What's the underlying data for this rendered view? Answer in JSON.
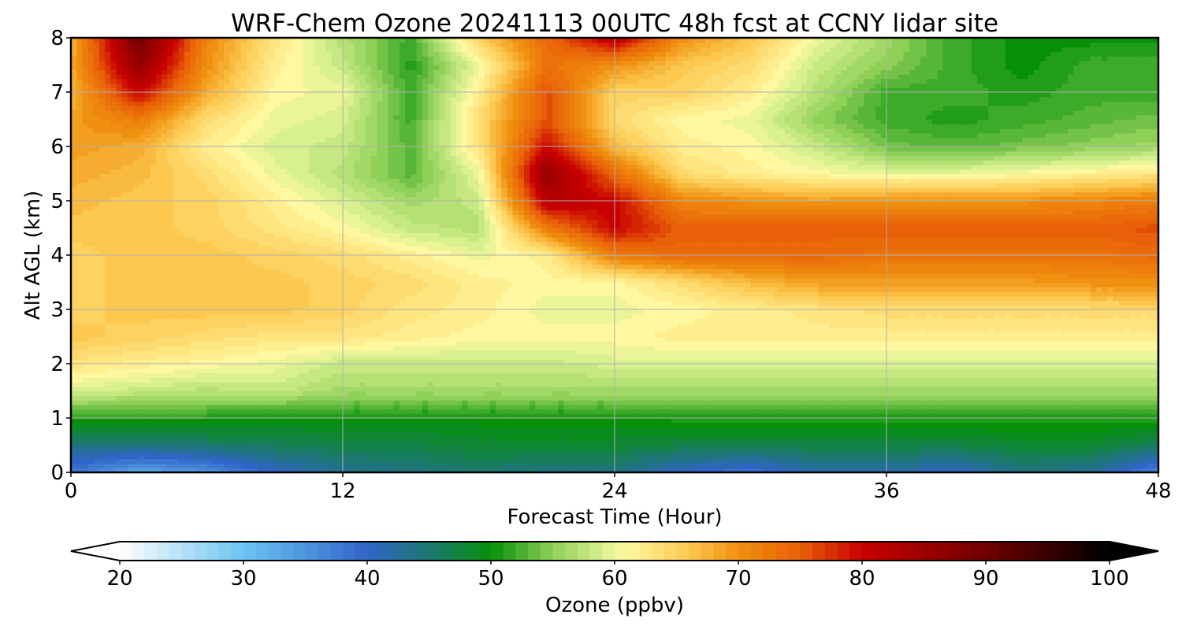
{
  "chart_data": {
    "type": "heatmap",
    "title": "WRF-Chem Ozone  20241113 00UTC 48h fcst at CCNY lidar site",
    "xlabel": "Forecast Time (Hour)",
    "ylabel": "Alt AGL (km)",
    "xlim": [
      0,
      48
    ],
    "ylim": [
      0,
      8
    ],
    "xticks": [
      0,
      12,
      24,
      36,
      48
    ],
    "yticks": [
      0,
      1,
      2,
      3,
      4,
      5,
      6,
      7,
      8
    ],
    "grid": true,
    "x_hours": [
      0,
      3,
      6,
      9,
      12,
      15,
      18,
      21,
      24,
      27,
      30,
      33,
      36,
      39,
      42,
      45,
      48
    ],
    "y_km": [
      0,
      0.5,
      1,
      1.5,
      2,
      2.5,
      3,
      3.5,
      4,
      4.5,
      5,
      5.5,
      6,
      6.5,
      7,
      7.5,
      8
    ],
    "z_ppbv": [
      [
        38,
        33,
        35,
        40,
        43,
        44,
        45,
        44,
        44,
        40,
        38,
        42,
        42,
        40,
        44,
        43,
        36
      ],
      [
        44,
        44,
        45,
        46,
        47,
        47,
        48,
        48,
        48,
        47,
        47,
        47,
        47,
        47,
        48,
        48,
        46
      ],
      [
        51,
        51,
        51,
        50,
        50,
        50,
        50,
        50,
        50,
        51,
        51,
        51,
        51,
        51,
        51,
        51,
        51
      ],
      [
        59,
        58,
        57,
        58,
        56,
        56,
        56,
        56,
        56,
        56,
        56,
        56,
        56,
        56,
        56,
        56,
        56
      ],
      [
        63,
        62,
        61,
        60,
        58,
        58,
        58,
        58,
        59,
        59,
        59,
        59,
        59,
        59,
        59,
        59,
        59
      ],
      [
        66,
        65,
        64,
        63,
        63,
        62,
        61,
        61,
        61,
        62,
        62,
        62,
        62,
        62,
        62,
        62,
        62
      ],
      [
        65,
        66,
        66,
        66,
        65,
        63,
        62,
        60,
        60,
        61,
        62,
        63,
        64,
        64,
        64,
        64,
        64
      ],
      [
        65,
        66,
        66,
        66,
        65,
        64,
        62,
        61,
        61,
        64,
        67,
        69,
        69,
        69,
        69,
        70,
        70
      ],
      [
        65,
        66,
        66,
        65,
        64,
        62,
        60,
        62,
        72,
        74,
        74,
        74,
        73,
        73,
        73,
        73,
        74
      ],
      [
        66,
        66,
        65,
        63,
        61,
        58,
        57,
        72,
        80,
        75,
        75,
        75,
        75,
        75,
        75,
        75,
        76
      ],
      [
        67,
        66,
        65,
        62,
        59,
        56,
        58,
        82,
        80,
        71,
        70,
        69,
        70,
        70,
        70,
        71,
        72
      ],
      [
        68,
        67,
        64,
        60,
        57,
        53,
        60,
        86,
        74,
        64,
        62,
        61,
        60,
        60,
        61,
        62,
        63
      ],
      [
        69,
        68,
        62,
        59,
        58,
        53,
        63,
        80,
        67,
        62,
        61,
        58,
        54,
        53,
        54,
        55,
        56
      ],
      [
        69,
        72,
        64,
        60,
        59,
        52,
        64,
        76,
        64,
        61,
        60,
        55,
        52,
        51,
        52,
        53,
        54
      ],
      [
        67,
        80,
        68,
        61,
        60,
        52,
        62,
        76,
        65,
        65,
        62,
        57,
        52,
        52,
        51,
        52,
        52
      ],
      [
        68,
        86,
        70,
        62,
        58,
        51,
        60,
        73,
        70,
        66,
        64,
        58,
        55,
        52,
        50,
        52,
        52
      ],
      [
        67,
        90,
        71,
        63,
        57,
        52,
        65,
        74,
        82,
        70,
        66,
        60,
        56,
        52,
        50,
        50,
        50
      ]
    ],
    "colorbar": {
      "label": "Ozone  (ppbv)",
      "min": 20,
      "max": 100,
      "ticks": [
        20,
        30,
        40,
        50,
        60,
        70,
        80,
        90,
        100
      ],
      "extend": "both",
      "stops": [
        {
          "v": 20,
          "color": "#ffffff"
        },
        {
          "v": 30,
          "color": "#6cc4f2"
        },
        {
          "v": 40,
          "color": "#3164c8"
        },
        {
          "v": 45,
          "color": "#1c7870"
        },
        {
          "v": 50,
          "color": "#06900a"
        },
        {
          "v": 55,
          "color": "#8fd058"
        },
        {
          "v": 59,
          "color": "#d8f090"
        },
        {
          "v": 61,
          "color": "#fff8a0"
        },
        {
          "v": 66,
          "color": "#fcc850"
        },
        {
          "v": 70,
          "color": "#f09010"
        },
        {
          "v": 75,
          "color": "#e86008"
        },
        {
          "v": 80,
          "color": "#c80000"
        },
        {
          "v": 90,
          "color": "#700000"
        },
        {
          "v": 100,
          "color": "#000000"
        }
      ]
    }
  }
}
